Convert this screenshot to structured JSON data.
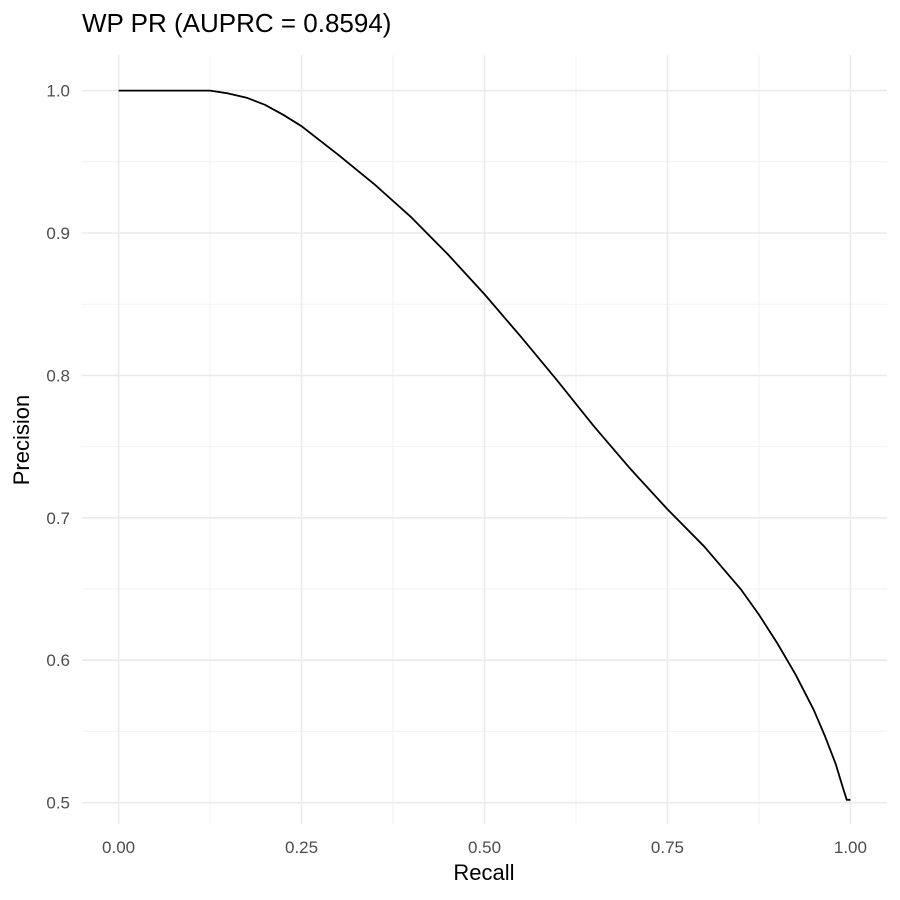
{
  "chart_data": {
    "type": "line",
    "title": "WP PR (AUPRC = 0.8594)",
    "xlabel": "Recall",
    "ylabel": "Precision",
    "xlim": [
      -0.05,
      1.05
    ],
    "ylim": [
      0.485,
      1.025
    ],
    "grid": true,
    "x_ticks": [
      0.0,
      0.25,
      0.5,
      0.75,
      1.0
    ],
    "x_tick_labels": [
      "0.00",
      "0.25",
      "0.50",
      "0.75",
      "1.00"
    ],
    "y_ticks": [
      0.5,
      0.6,
      0.7,
      0.8,
      0.9,
      1.0
    ],
    "y_tick_labels": [
      "0.5",
      "0.6",
      "0.7",
      "0.8",
      "0.9",
      "1.0"
    ],
    "series": [
      {
        "color": "#000000",
        "x": [
          0.0,
          0.05,
          0.1,
          0.125,
          0.15,
          0.175,
          0.2,
          0.225,
          0.25,
          0.275,
          0.3,
          0.35,
          0.4,
          0.45,
          0.5,
          0.55,
          0.6,
          0.625,
          0.65,
          0.7,
          0.75,
          0.8,
          0.85,
          0.875,
          0.9,
          0.925,
          0.95,
          0.965,
          0.98,
          0.99,
          0.995,
          1.0,
          1.0
        ],
        "y": [
          1.0,
          1.0,
          1.0,
          1.0,
          0.998,
          0.995,
          0.99,
          0.983,
          0.975,
          0.965,
          0.955,
          0.934,
          0.911,
          0.885,
          0.857,
          0.827,
          0.796,
          0.78,
          0.764,
          0.734,
          0.706,
          0.68,
          0.65,
          0.632,
          0.612,
          0.59,
          0.565,
          0.547,
          0.527,
          0.51,
          0.495,
          0.48,
          0.452
        ]
      }
    ]
  }
}
